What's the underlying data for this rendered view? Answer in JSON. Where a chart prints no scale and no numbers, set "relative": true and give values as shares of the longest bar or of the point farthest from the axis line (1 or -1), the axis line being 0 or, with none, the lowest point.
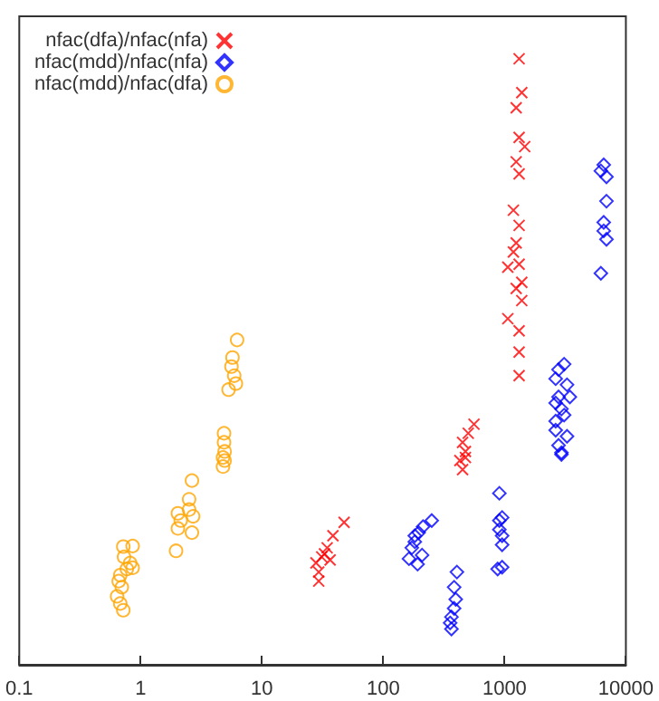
{
  "chart_data": {
    "type": "scatter",
    "relative": true,
    "log": "x",
    "xlim": [
      0.1,
      10000
    ],
    "xticks": [
      0.1,
      1,
      10,
      100,
      1000,
      10000
    ],
    "legend": "top left",
    "grid": false,
    "tick_labels": "x",
    "series": [
      {
        "name": "nfac(dfa)/nfac(nfa)",
        "color": "#ff0000",
        "marker": "cross",
        "x": [
          47.6,
          38.5,
          34.5,
          31.1,
          27.9,
          29.4,
          29.4,
          32.8,
          36.5,
          560,
          502,
          451,
          476,
          428,
          451,
          476,
          1318,
          1387,
          1247,
          1318,
          1466,
          1247,
          1318,
          1183,
          1318,
          1247,
          1183,
          1064,
          1318,
          1247,
          1387,
          1387,
          1064,
          1318,
          1318,
          1318
        ],
        "values": [
          0.235,
          0.213,
          0.193,
          0.178,
          0.168,
          0.153,
          0.138,
          0.183,
          0.173,
          0.397,
          0.382,
          0.367,
          0.352,
          0.337,
          0.322,
          0.342,
          1,
          0.944,
          0.919,
          0.87,
          0.855,
          0.83,
          0.81,
          0.75,
          0.725,
          0.696,
          0.681,
          0.656,
          0.661,
          0.621,
          0.631,
          0.601,
          0.571,
          0.551,
          0.516,
          0.477
        ]
      },
      {
        "name": "nfac(mdd)/nfac(nfa)",
        "color": "#0000ff",
        "marker": "diamond",
        "x": [
          251,
          213,
          196,
          182,
          172,
          163,
          192,
          209,
          182,
          405,
          384,
          396,
          384,
          365,
          356,
          365,
          906,
          906,
          955,
          906,
          955,
          955,
          877,
          955,
          3098,
          2786,
          2638,
          3273,
          2786,
          3454,
          2638,
          2944,
          3098,
          2638,
          2638,
          3273,
          2786,
          2944,
          2944,
          6568,
          6220,
          6918,
          6918,
          6568,
          6568,
          6918,
          6220
        ],
        "values": [
          0.238,
          0.228,
          0.218,
          0.213,
          0.193,
          0.175,
          0.166,
          0.181,
          0.203,
          0.153,
          0.128,
          0.108,
          0.093,
          0.079,
          0.069,
          0.059,
          0.283,
          0.238,
          0.243,
          0.223,
          0.213,
          0.198,
          0.158,
          0.161,
          0.496,
          0.487,
          0.472,
          0.462,
          0.442,
          0.442,
          0.432,
          0.422,
          0.412,
          0.402,
          0.387,
          0.377,
          0.362,
          0.35,
          0.347,
          0.825,
          0.815,
          0.805,
          0.765,
          0.73,
          0.716,
          0.702,
          0.646
        ]
      },
      {
        "name": "nfac(mdd)/nfac(dfa)",
        "color": "#ffa500",
        "marker": "circle",
        "x": [
          0.72,
          0.86,
          0.73,
          0.82,
          0.86,
          0.77,
          0.68,
          0.66,
          0.7,
          0.64,
          0.68,
          0.72,
          2.65,
          2.03,
          2.14,
          2.03,
          2.65,
          1.96,
          2.51,
          2.51,
          2.71,
          4.78,
          4.78,
          4.87,
          4.87,
          4.93,
          4.93,
          6.24,
          5.72,
          5.61,
          5.91,
          5.31,
          6.1
        ],
        "values": [
          0.195,
          0.196,
          0.178,
          0.168,
          0.16,
          0.158,
          0.148,
          0.138,
          0.128,
          0.113,
          0.101,
          0.09,
          0.304,
          0.25,
          0.238,
          0.225,
          0.218,
          0.188,
          0.273,
          0.256,
          0.245,
          0.342,
          0.327,
          0.382,
          0.367,
          0.352,
          0.337,
          0.536,
          0.507,
          0.492,
          0.477,
          0.454,
          0.464
        ]
      }
    ]
  }
}
